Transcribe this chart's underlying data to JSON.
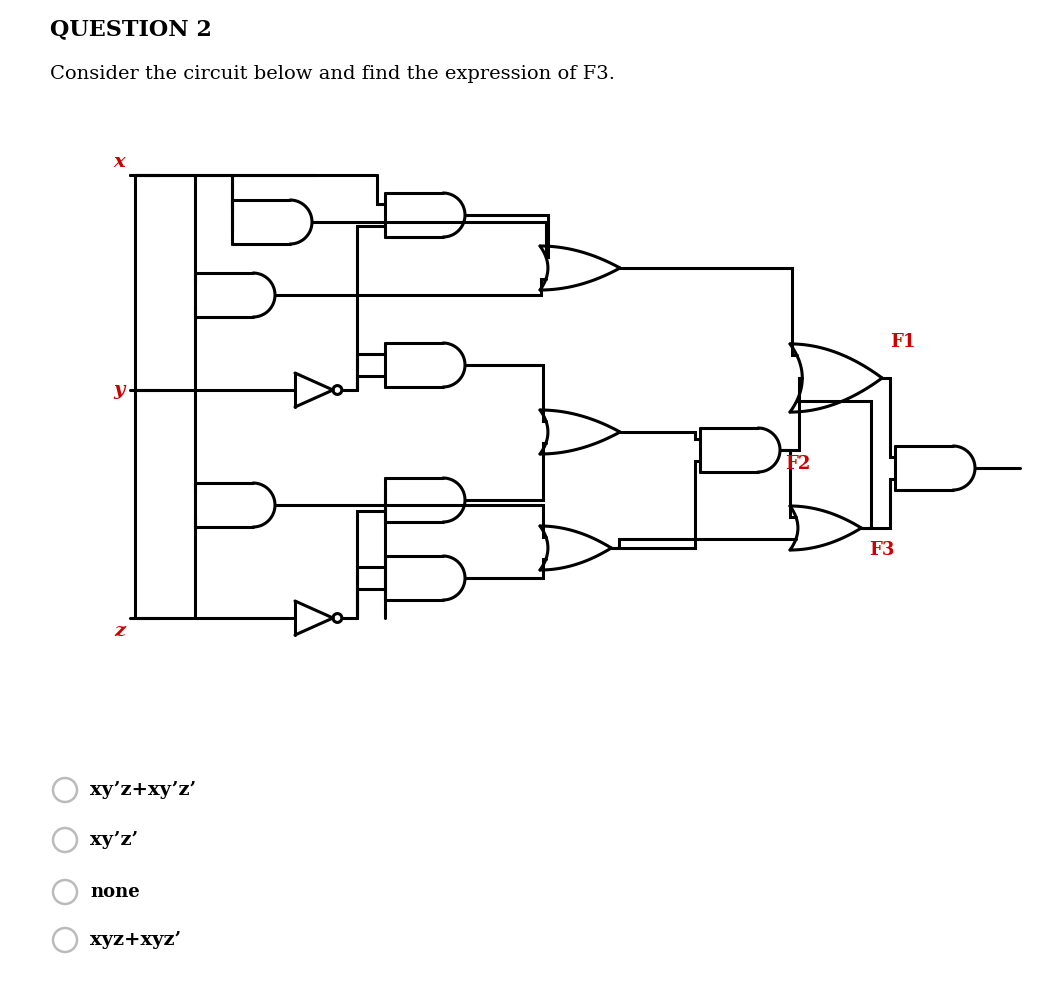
{
  "title": "QUESTION 2",
  "subtitle": "Consider the circuit below and find the expression of F3.",
  "title_color": "#000000",
  "subtitle_color": "#000000",
  "label_x": "x",
  "label_y": "y",
  "label_z": "z",
  "label_F1": "F1",
  "label_F2": "F2",
  "label_F3": "F3",
  "input_color": "#cc0000",
  "output_color": "#cc0000",
  "gate_color": "#000000",
  "wire_color": "#000000",
  "bg_color": "#ffffff",
  "choices": [
    "xy’z+xy’z’",
    "xy’z’",
    "none",
    "xyz+xyz’"
  ],
  "choice_color": "#000000",
  "radio_color": "#bbbbbb"
}
